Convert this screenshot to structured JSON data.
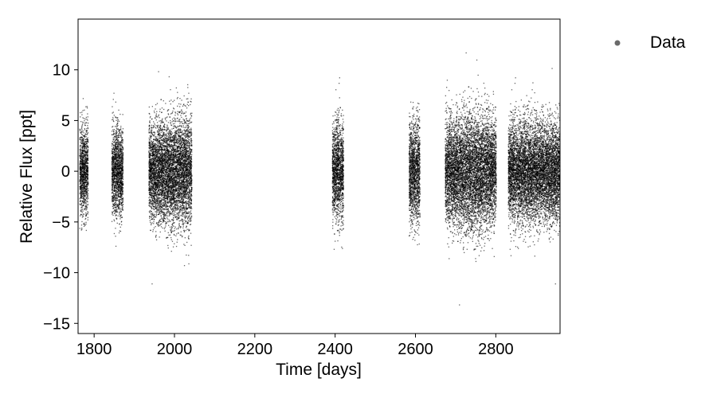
{
  "chart_data": {
    "type": "scatter",
    "title": "",
    "xlabel": "Time [days]",
    "ylabel": "Relative Flux [ppt]",
    "xlim": [
      1760,
      2960
    ],
    "ylim": [
      -16,
      15
    ],
    "xticks": [
      1800,
      2000,
      2200,
      2400,
      2600,
      2800
    ],
    "yticks": [
      -15,
      -10,
      -5,
      0,
      5,
      10
    ],
    "xtick_labels": [
      "1800",
      "2000",
      "2200",
      "2400",
      "2600",
      "2800"
    ],
    "ytick_labels": [
      "−15",
      "−10",
      "−5",
      "0",
      "5",
      "10"
    ],
    "grid": false,
    "legend_position": "outside-right-top",
    "series": [
      {
        "name": "Data",
        "color": "#000000",
        "marker": "point",
        "observing_segments": [
          {
            "x_range": [
              1763,
              1784
            ],
            "scatter": 3.0
          },
          {
            "x_range": [
              1843,
              1871
            ],
            "scatter": 3.0
          },
          {
            "x_range": [
              1935,
              1962
            ],
            "scatter": 3.2
          },
          {
            "x_range": [
              1962,
              1990
            ],
            "scatter": 3.4
          },
          {
            "x_range": [
              1990,
              2018
            ],
            "scatter": 3.6
          },
          {
            "x_range": [
              2018,
              2042
            ],
            "scatter": 3.8
          },
          {
            "x_range": [
              2392,
              2420
            ],
            "scatter": 3.4
          },
          {
            "x_range": [
              2583,
              2610
            ],
            "scatter": 3.4
          },
          {
            "x_range": [
              2673,
              2700
            ],
            "scatter": 3.5
          },
          {
            "x_range": [
              2700,
              2728
            ],
            "scatter": 3.8
          },
          {
            "x_range": [
              2728,
              2756
            ],
            "scatter": 4.0
          },
          {
            "x_range": [
              2756,
              2783
            ],
            "scatter": 3.8
          },
          {
            "x_range": [
              2783,
              2800
            ],
            "scatter": 3.5
          },
          {
            "x_range": [
              2830,
              2858
            ],
            "scatter": 3.4
          },
          {
            "x_range": [
              2858,
              2886
            ],
            "scatter": 3.5
          },
          {
            "x_range": [
              2886,
              2914
            ],
            "scatter": 3.4
          },
          {
            "x_range": [
              2914,
              2942
            ],
            "scatter": 3.3
          },
          {
            "x_range": [
              2942,
              2960
            ],
            "scatter": 3.2
          }
        ]
      }
    ],
    "legend": [
      {
        "label": "Data",
        "color": "#6a6a6a"
      }
    ]
  }
}
